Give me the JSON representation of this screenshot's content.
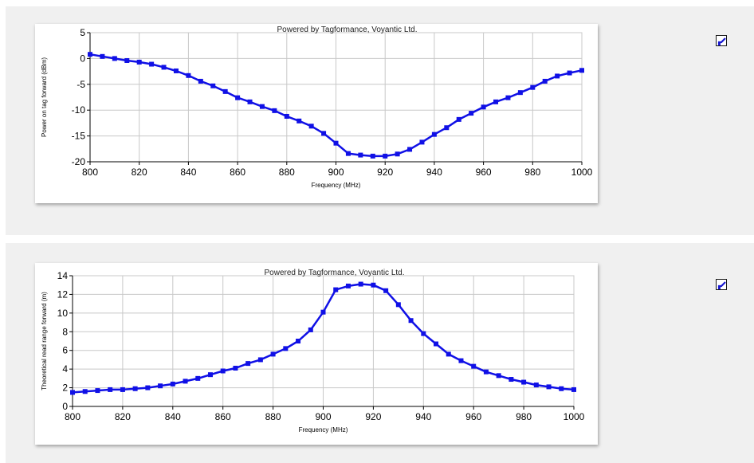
{
  "colors": {
    "series": "#1010e6",
    "grid": "#c8c8c8",
    "axis": "#000000",
    "panel_background": "#f0f0f0"
  },
  "chart_data": [
    {
      "type": "line",
      "title": "Powered by Tagformance, Voyantic Ltd.",
      "xlabel": "Frequency (MHz)",
      "ylabel": "Power on tag forward (dBm)",
      "xlim": [
        800,
        1000
      ],
      "ylim": [
        -20,
        5
      ],
      "xticks": [
        800,
        820,
        840,
        860,
        880,
        900,
        920,
        940,
        960,
        980,
        1000
      ],
      "yticks": [
        5,
        0,
        -5,
        -10,
        -15,
        -20
      ],
      "grid": true,
      "marker": "square",
      "x": [
        800,
        805,
        810,
        815,
        820,
        825,
        830,
        835,
        840,
        845,
        850,
        855,
        860,
        865,
        870,
        875,
        880,
        885,
        890,
        895,
        900,
        905,
        910,
        915,
        920,
        925,
        930,
        935,
        940,
        945,
        950,
        955,
        960,
        965,
        970,
        975,
        980,
        985,
        990,
        995,
        1000
      ],
      "y": [
        0.8,
        0.4,
        0.0,
        -0.4,
        -0.7,
        -1.1,
        -1.7,
        -2.4,
        -3.3,
        -4.4,
        -5.3,
        -6.4,
        -7.6,
        -8.4,
        -9.3,
        -10.1,
        -11.2,
        -12.1,
        -13.1,
        -14.5,
        -16.4,
        -18.4,
        -18.7,
        -18.9,
        -18.9,
        -18.5,
        -17.6,
        -16.2,
        -14.7,
        -13.4,
        -11.8,
        -10.6,
        -9.4,
        -8.4,
        -7.6,
        -6.6,
        -5.6,
        -4.4,
        -3.4,
        -2.8,
        -2.3
      ]
    },
    {
      "type": "line",
      "title": "Powered by Tagformance, Voyantic Ltd.",
      "xlabel": "Frequency (MHz)",
      "ylabel": "Theoretical read range forward (m)",
      "xlim": [
        800,
        1000
      ],
      "ylim": [
        0,
        14
      ],
      "xticks": [
        800,
        820,
        840,
        860,
        880,
        900,
        920,
        940,
        960,
        980,
        1000
      ],
      "yticks": [
        14,
        12,
        10,
        8,
        6,
        4,
        2,
        0
      ],
      "grid": true,
      "marker": "square",
      "x": [
        800,
        805,
        810,
        815,
        820,
        825,
        830,
        835,
        840,
        845,
        850,
        855,
        860,
        865,
        870,
        875,
        880,
        885,
        890,
        895,
        900,
        905,
        910,
        915,
        920,
        925,
        930,
        935,
        940,
        945,
        950,
        955,
        960,
        965,
        970,
        975,
        980,
        985,
        990,
        995,
        1000
      ],
      "y": [
        1.5,
        1.6,
        1.7,
        1.8,
        1.8,
        1.9,
        2.0,
        2.2,
        2.4,
        2.7,
        3.0,
        3.4,
        3.8,
        4.1,
        4.6,
        5.0,
        5.6,
        6.2,
        7.0,
        8.2,
        10.1,
        12.5,
        12.9,
        13.1,
        13.0,
        12.4,
        10.9,
        9.2,
        7.8,
        6.7,
        5.6,
        4.9,
        4.3,
        3.7,
        3.3,
        2.9,
        2.6,
        2.3,
        2.1,
        1.9,
        1.8
      ]
    }
  ],
  "toolbar": {
    "zoom_icon_top": "zoom-tool-icon",
    "zoom_icon_bottom": "zoom-tool-icon"
  }
}
